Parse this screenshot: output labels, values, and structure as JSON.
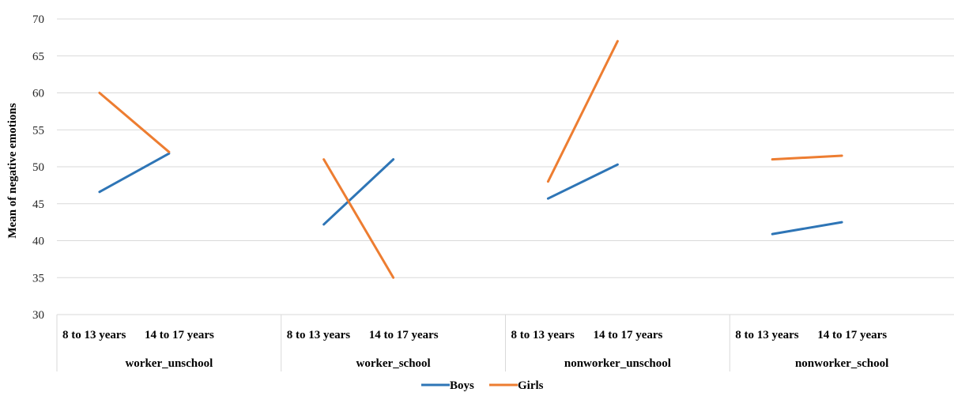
{
  "chart_data": {
    "type": "line",
    "ylabel": "Mean of negative emotions",
    "ylim": [
      30,
      70
    ],
    "yticks": [
      30,
      35,
      40,
      45,
      50,
      55,
      60,
      65,
      70
    ],
    "grid": true,
    "legend_position": "bottom",
    "groups": [
      {
        "name": "worker_unschool",
        "categories": [
          "8 to 13 years",
          "14 to 17 years"
        ]
      },
      {
        "name": "worker_school",
        "categories": [
          "8 to 13 years",
          "14 to 17 years"
        ]
      },
      {
        "name": "nonworker_unschool",
        "categories": [
          "8 to 13 years",
          "14 to 17 years"
        ]
      },
      {
        "name": "nonworker_school",
        "categories": [
          "8 to 13 years",
          "14 to 17 years"
        ]
      }
    ],
    "series": [
      {
        "name": "Boys",
        "color": "#2e75b6",
        "values": [
          [
            46.6,
            51.8
          ],
          [
            42.2,
            51.0
          ],
          [
            45.7,
            50.3
          ],
          [
            40.9,
            42.5
          ]
        ]
      },
      {
        "name": "Girls",
        "color": "#ed7d31",
        "values": [
          [
            60.0,
            52.0
          ],
          [
            51.0,
            35.0
          ],
          [
            48.0,
            67.0
          ],
          [
            51.0,
            51.5
          ]
        ]
      }
    ]
  }
}
